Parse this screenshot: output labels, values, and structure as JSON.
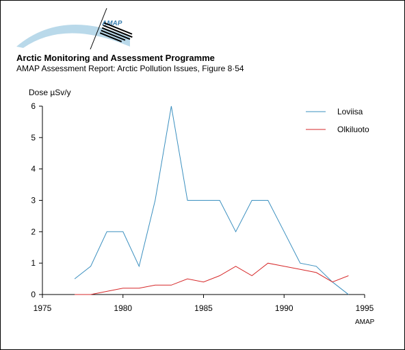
{
  "header": {
    "logo_text": "AMAP",
    "org_title": "Arctic Monitoring and Assessment Programme",
    "subtitle": "AMAP Assessment Report: Arctic Pollution Issues, Figure 8·54"
  },
  "footer": {
    "credit": "AMAP"
  },
  "chart_data": {
    "type": "line",
    "title": "",
    "xlabel": "",
    "ylabel": "Dose µSv/y",
    "xlim": [
      1975,
      1995
    ],
    "ylim": [
      0,
      6
    ],
    "x_ticks": [
      1975,
      1980,
      1985,
      1990,
      1995
    ],
    "y_ticks": [
      0,
      1,
      2,
      3,
      4,
      5,
      6
    ],
    "grid": false,
    "legend_position": "top-right",
    "series": [
      {
        "name": "Loviisa",
        "color": "#3a8fbf",
        "x": [
          1977,
          1978,
          1979,
          1980,
          1981,
          1982,
          1983,
          1984,
          1985,
          1986,
          1987,
          1988,
          1989,
          1990,
          1991,
          1992,
          1993,
          1994
        ],
        "values": [
          0.5,
          0.9,
          2.0,
          2.0,
          0.9,
          3.0,
          6.0,
          3.0,
          3.0,
          3.0,
          2.0,
          3.0,
          3.0,
          2.0,
          1.0,
          0.9,
          0.4,
          0.0
        ]
      },
      {
        "name": "Olkiluoto",
        "color": "#d62728",
        "x": [
          1977,
          1978,
          1979,
          1980,
          1981,
          1982,
          1983,
          1984,
          1985,
          1986,
          1987,
          1988,
          1989,
          1990,
          1991,
          1992,
          1993,
          1994
        ],
        "values": [
          0.0,
          0.0,
          0.1,
          0.2,
          0.2,
          0.3,
          0.3,
          0.5,
          0.4,
          0.6,
          0.9,
          0.6,
          1.0,
          0.9,
          0.8,
          0.7,
          0.4,
          0.6
        ]
      }
    ]
  }
}
